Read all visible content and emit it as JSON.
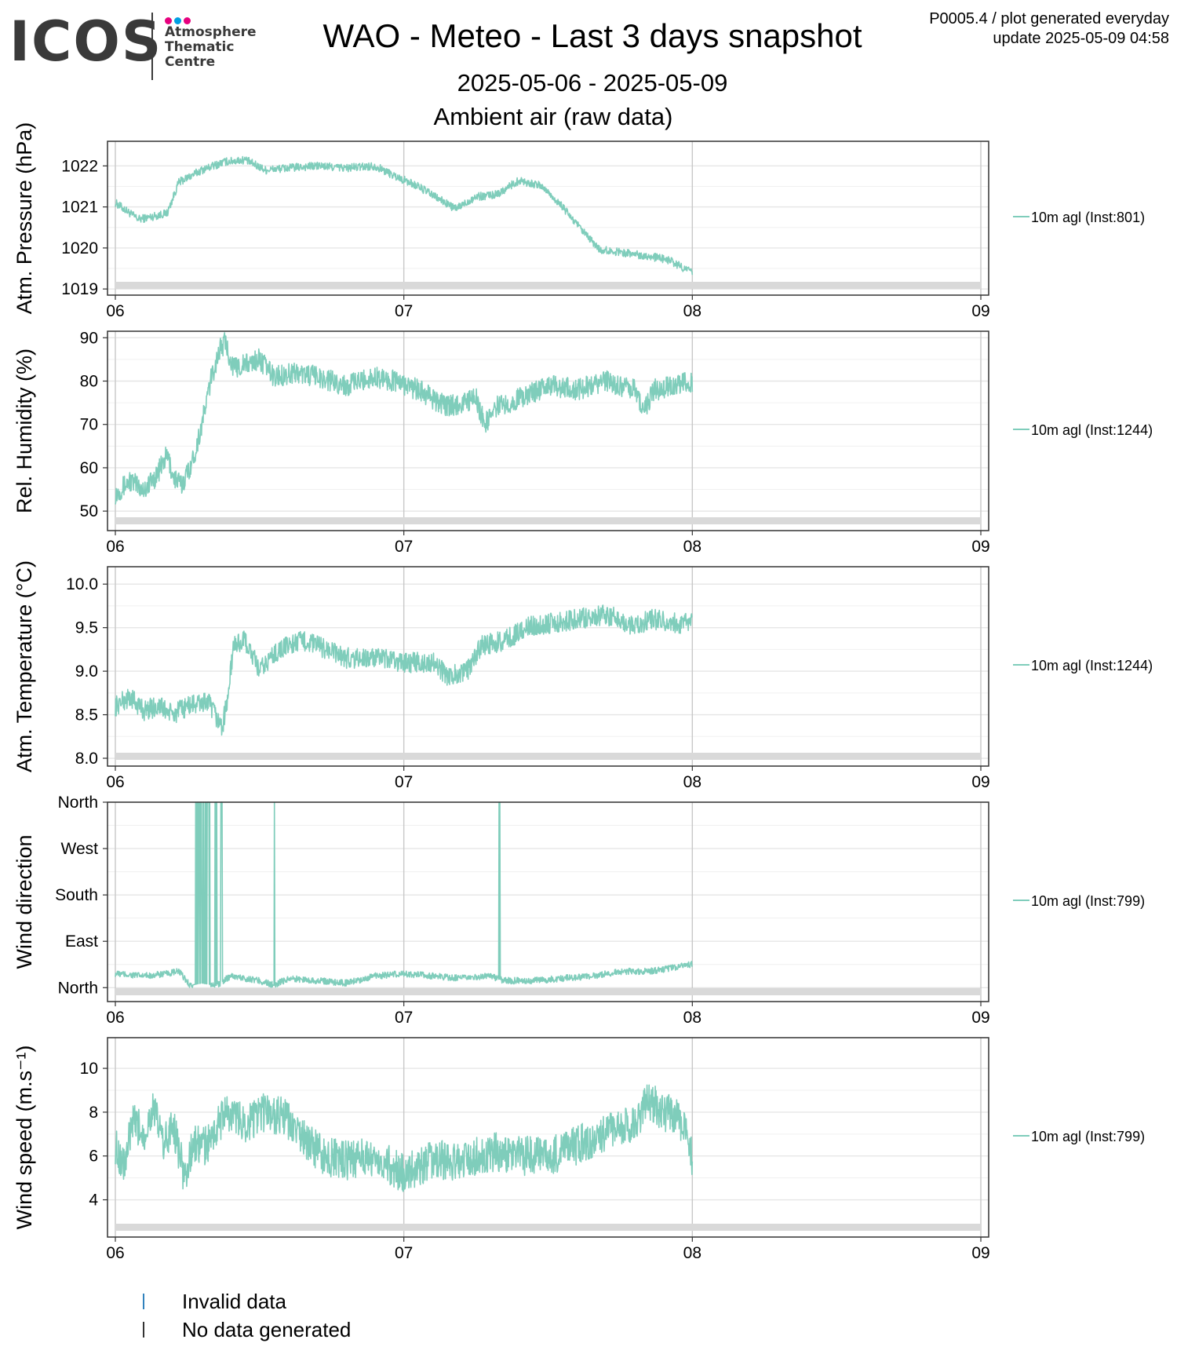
{
  "header": {
    "logo_text": "ICOS",
    "logo_sub": [
      "Atmosphere",
      "Thematic",
      "Centre"
    ],
    "logo_dot_colors": [
      "#e6007e",
      "#009fe3",
      "#e6007e"
    ],
    "title": "WAO - Meteo - Last 3 days snapshot",
    "subtitle_dates": "2025-05-06 - 2025-05-09",
    "subtitle_section": "Ambient air (raw data)",
    "info_line1": "P0005.4 / plot generated everyday",
    "info_line2": "update  2025-05-09 04:58"
  },
  "colors": {
    "series": "#7fcdbb",
    "invalid": "#3182bd",
    "nodata": "#333333",
    "gap_band": "#d9d9d9"
  },
  "bottom_legend": [
    {
      "label": "Invalid data",
      "color": "#3182bd"
    },
    {
      "label": "No data generated",
      "color": "#333333"
    }
  ],
  "chart_data": [
    {
      "type": "line",
      "ylabel": "Atm. Pressure (hPa)",
      "series_name": "10m agl (Inst:801)",
      "x_ticks": [
        "06",
        "07",
        "08",
        "09"
      ],
      "x_range": [
        0,
        3
      ],
      "y_range": [
        1018.85,
        1022.6
      ],
      "y_ticks": [
        {
          "v": 1019,
          "l": "1019"
        },
        {
          "v": 1020,
          "l": "1020"
        },
        {
          "v": 1021,
          "l": "1021"
        },
        {
          "v": 1022,
          "l": "1022"
        }
      ],
      "noise": 0.1,
      "anchors": [
        [
          0,
          1021.1
        ],
        [
          0.03,
          1020.95
        ],
        [
          0.08,
          1020.7
        ],
        [
          0.12,
          1020.75
        ],
        [
          0.18,
          1020.85
        ],
        [
          0.22,
          1021.6
        ],
        [
          0.3,
          1021.9
        ],
        [
          0.38,
          1022.1
        ],
        [
          0.45,
          1022.15
        ],
        [
          0.52,
          1021.9
        ],
        [
          0.6,
          1021.95
        ],
        [
          0.7,
          1022.0
        ],
        [
          0.8,
          1021.95
        ],
        [
          0.9,
          1022.0
        ],
        [
          0.97,
          1021.75
        ],
        [
          1.05,
          1021.5
        ],
        [
          1.12,
          1021.2
        ],
        [
          1.18,
          1020.95
        ],
        [
          1.25,
          1021.25
        ],
        [
          1.32,
          1021.3
        ],
        [
          1.4,
          1021.65
        ],
        [
          1.48,
          1021.5
        ],
        [
          1.55,
          1021.0
        ],
        [
          1.62,
          1020.4
        ],
        [
          1.68,
          1019.95
        ],
        [
          1.75,
          1019.9
        ],
        [
          1.85,
          1019.8
        ],
        [
          1.92,
          1019.7
        ],
        [
          2.0,
          1019.4
        ]
      ]
    },
    {
      "type": "line",
      "ylabel": "Rel. Humidity (%)",
      "series_name": "10m agl (Inst:1244)",
      "x_ticks": [
        "06",
        "07",
        "08",
        "09"
      ],
      "x_range": [
        0,
        3
      ],
      "y_range": [
        45.5,
        91.5
      ],
      "y_ticks": [
        {
          "v": 50,
          "l": "50"
        },
        {
          "v": 60,
          "l": "60"
        },
        {
          "v": 70,
          "l": "70"
        },
        {
          "v": 80,
          "l": "80"
        },
        {
          "v": 90,
          "l": "90"
        }
      ],
      "noise": 2.5,
      "anchors": [
        [
          0,
          54
        ],
        [
          0.05,
          57
        ],
        [
          0.1,
          55
        ],
        [
          0.14,
          58
        ],
        [
          0.18,
          63
        ],
        [
          0.2,
          58
        ],
        [
          0.23,
          56
        ],
        [
          0.27,
          62
        ],
        [
          0.3,
          70
        ],
        [
          0.33,
          80
        ],
        [
          0.36,
          87
        ],
        [
          0.38,
          89
        ],
        [
          0.41,
          83
        ],
        [
          0.46,
          84
        ],
        [
          0.5,
          85
        ],
        [
          0.55,
          81
        ],
        [
          0.62,
          82
        ],
        [
          0.7,
          81
        ],
        [
          0.8,
          79
        ],
        [
          0.9,
          81
        ],
        [
          0.97,
          80
        ],
        [
          1.05,
          78
        ],
        [
          1.1,
          76
        ],
        [
          1.15,
          74
        ],
        [
          1.2,
          75
        ],
        [
          1.25,
          76
        ],
        [
          1.28,
          70
        ],
        [
          1.32,
          74
        ],
        [
          1.4,
          76
        ],
        [
          1.5,
          79
        ],
        [
          1.6,
          78
        ],
        [
          1.65,
          79
        ],
        [
          1.7,
          80
        ],
        [
          1.75,
          79
        ],
        [
          1.8,
          78
        ],
        [
          1.83,
          73
        ],
        [
          1.87,
          78
        ],
        [
          1.95,
          79
        ],
        [
          2.0,
          80
        ]
      ]
    },
    {
      "type": "line",
      "ylabel": "Atm. Temperature (°C)",
      "series_name": "10m agl (Inst:1244)",
      "x_ticks": [
        "06",
        "07",
        "08",
        "09"
      ],
      "x_range": [
        0,
        3
      ],
      "y_range": [
        7.91,
        10.2
      ],
      "y_ticks": [
        {
          "v": 8.0,
          "l": "8.0"
        },
        {
          "v": 8.5,
          "l": "8.5"
        },
        {
          "v": 9.0,
          "l": "9.0"
        },
        {
          "v": 9.5,
          "l": "9.5"
        },
        {
          "v": 10.0,
          "l": "10.0"
        }
      ],
      "noise": 0.12,
      "anchors": [
        [
          0,
          8.6
        ],
        [
          0.05,
          8.7
        ],
        [
          0.1,
          8.55
        ],
        [
          0.15,
          8.6
        ],
        [
          0.2,
          8.5
        ],
        [
          0.25,
          8.6
        ],
        [
          0.32,
          8.65
        ],
        [
          0.37,
          8.35
        ],
        [
          0.39,
          8.7
        ],
        [
          0.41,
          9.3
        ],
        [
          0.45,
          9.35
        ],
        [
          0.5,
          9.0
        ],
        [
          0.55,
          9.2
        ],
        [
          0.6,
          9.3
        ],
        [
          0.65,
          9.35
        ],
        [
          0.7,
          9.3
        ],
        [
          0.8,
          9.15
        ],
        [
          0.9,
          9.15
        ],
        [
          1.0,
          9.1
        ],
        [
          1.1,
          9.1
        ],
        [
          1.15,
          8.95
        ],
        [
          1.22,
          9.0
        ],
        [
          1.27,
          9.3
        ],
        [
          1.35,
          9.35
        ],
        [
          1.42,
          9.5
        ],
        [
          1.5,
          9.55
        ],
        [
          1.6,
          9.6
        ],
        [
          1.7,
          9.65
        ],
        [
          1.75,
          9.6
        ],
        [
          1.8,
          9.5
        ],
        [
          1.85,
          9.6
        ],
        [
          1.95,
          9.55
        ],
        [
          2.0,
          9.55
        ]
      ]
    },
    {
      "type": "line",
      "ylabel": "Wind direction",
      "series_name": "10m agl (Inst:799)",
      "x_ticks": [
        "06",
        "07",
        "08",
        "09"
      ],
      "x_range": [
        0,
        3
      ],
      "y_range": [
        -30,
        400
      ],
      "y_ticks": [
        {
          "v": 0,
          "l": "North"
        },
        {
          "v": 100,
          "l": "East"
        },
        {
          "v": 200,
          "l": "South"
        },
        {
          "v": 300,
          "l": "West"
        },
        {
          "v": 400,
          "l": "North"
        }
      ],
      "noise": 7,
      "anchors": [
        [
          0,
          30
        ],
        [
          0.1,
          25
        ],
        [
          0.18,
          30
        ],
        [
          0.22,
          35
        ],
        [
          0.26,
          5
        ],
        [
          0.3,
          10
        ],
        [
          0.35,
          5
        ],
        [
          0.4,
          25
        ],
        [
          0.5,
          15
        ],
        [
          0.55,
          5
        ],
        [
          0.6,
          20
        ],
        [
          0.7,
          15
        ],
        [
          0.8,
          10
        ],
        [
          0.9,
          25
        ],
        [
          1.0,
          30
        ],
        [
          1.1,
          25
        ],
        [
          1.2,
          20
        ],
        [
          1.3,
          25
        ],
        [
          1.35,
          15
        ],
        [
          1.45,
          15
        ],
        [
          1.55,
          20
        ],
        [
          1.65,
          25
        ],
        [
          1.75,
          35
        ],
        [
          1.85,
          35
        ],
        [
          1.95,
          45
        ],
        [
          2.0,
          50
        ]
      ],
      "spikes": [
        [
          0.27,
          0.33
        ],
        [
          0.345,
          0.352
        ],
        [
          0.365,
          0.372
        ],
        [
          0.545,
          0.552
        ],
        [
          1.33,
          1.336
        ]
      ],
      "spike_value": 400
    },
    {
      "type": "line",
      "ylabel": "Wind speed (m.s⁻¹)",
      "series_name": "10m agl (Inst:799)",
      "x_ticks": [
        "06",
        "07",
        "08",
        "09"
      ],
      "x_range": [
        0,
        3
      ],
      "y_range": [
        2.3,
        11.4
      ],
      "y_ticks": [
        {
          "v": 4,
          "l": "4"
        },
        {
          "v": 6,
          "l": "6"
        },
        {
          "v": 8,
          "l": "8"
        },
        {
          "v": 10,
          "l": "10"
        }
      ],
      "noise": 0.9,
      "anchors": [
        [
          0,
          6.5
        ],
        [
          0.03,
          5.5
        ],
        [
          0.06,
          7.5
        ],
        [
          0.1,
          7
        ],
        [
          0.13,
          8.2
        ],
        [
          0.17,
          6.5
        ],
        [
          0.2,
          7.5
        ],
        [
          0.24,
          5
        ],
        [
          0.27,
          6.5
        ],
        [
          0.32,
          6.5
        ],
        [
          0.38,
          8
        ],
        [
          0.45,
          7.5
        ],
        [
          0.52,
          8
        ],
        [
          0.58,
          7.8
        ],
        [
          0.65,
          6.8
        ],
        [
          0.72,
          6
        ],
        [
          0.8,
          5.8
        ],
        [
          0.9,
          6
        ],
        [
          1.0,
          5.2
        ],
        [
          1.05,
          5.5
        ],
        [
          1.1,
          5.8
        ],
        [
          1.2,
          5.8
        ],
        [
          1.3,
          6.2
        ],
        [
          1.4,
          6
        ],
        [
          1.5,
          6
        ],
        [
          1.6,
          6.5
        ],
        [
          1.7,
          7
        ],
        [
          1.75,
          7.2
        ],
        [
          1.8,
          7.5
        ],
        [
          1.85,
          8.5
        ],
        [
          1.9,
          8
        ],
        [
          1.95,
          8
        ],
        [
          2.0,
          6
        ]
      ]
    }
  ]
}
